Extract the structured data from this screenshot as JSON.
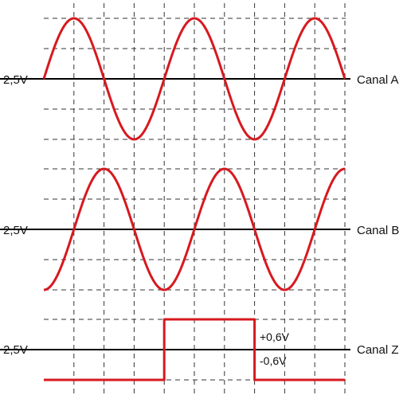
{
  "colors": {
    "signal": "#d7191f",
    "baseline": "#000000",
    "grid": "#333333",
    "background": "#ffffff"
  },
  "chart_data": {
    "type": "line",
    "title": "",
    "xlabel": "",
    "ylabel": "",
    "grid": true,
    "grid_style": "dashed",
    "x_divisions": 10,
    "x_range": [
      0,
      10
    ],
    "y_divisions_per_channel": 4,
    "channels": [
      {
        "name": "Canal A",
        "baseline_label": "2,5V",
        "waveform": "sine",
        "amplitude_divisions": 2,
        "period_divisions": 4,
        "phase_deg": 0,
        "start_division": 0,
        "end_division": 10
      },
      {
        "name": "Canal B",
        "baseline_label": "2,5V",
        "waveform": "sine",
        "amplitude_divisions": 2,
        "period_divisions": 4,
        "phase_deg": -90,
        "start_division": 0,
        "end_division": 10
      },
      {
        "name": "Canal Z",
        "baseline_label": "2,5V",
        "waveform": "square-pulse",
        "high_divisions": 1,
        "low_divisions": -1,
        "pulse_start_division": 4,
        "pulse_end_division": 7,
        "start_division": 0,
        "end_division": 10,
        "annotations": [
          "+0,6V",
          "-0,6V"
        ]
      }
    ]
  }
}
